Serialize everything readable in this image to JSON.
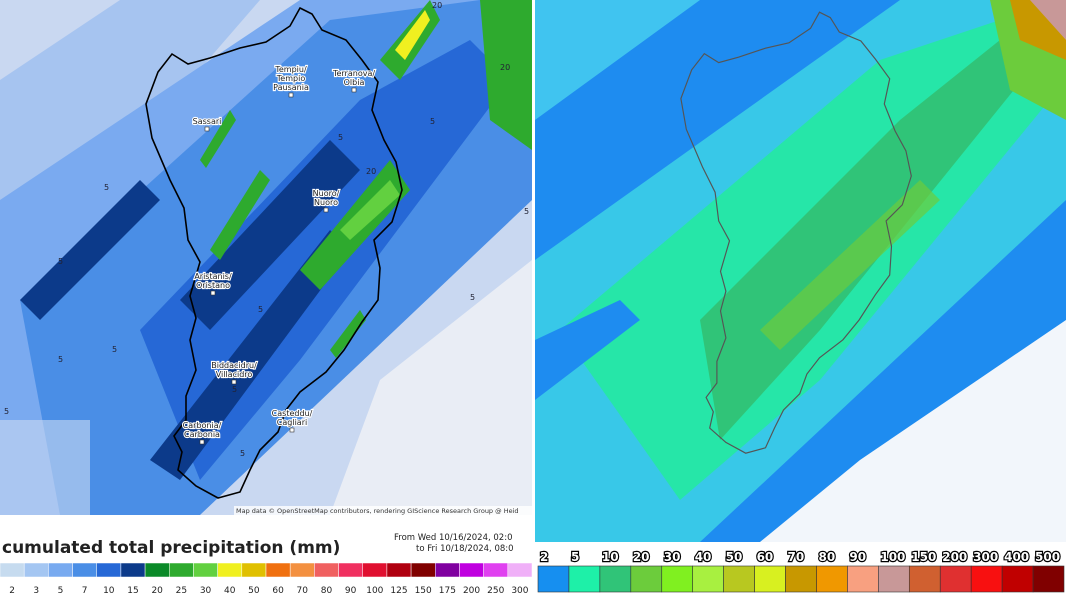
{
  "left_map": {
    "cities": [
      {
        "lines": [
          "Tempiu/",
          "Tempio",
          "Pausania"
        ]
      },
      {
        "lines": [
          "Terranova/",
          "Olbia"
        ]
      },
      {
        "lines": [
          "Sassari"
        ]
      },
      {
        "lines": [
          "Nuoro/",
          "Nuoro"
        ]
      },
      {
        "lines": [
          "Aristanis/",
          "Oristano"
        ]
      },
      {
        "lines": [
          "Biddacidru/",
          "Villacidro"
        ]
      },
      {
        "lines": [
          "Casteddu/",
          "Cagliari"
        ]
      },
      {
        "lines": [
          "Carbonia/",
          "Carbonia"
        ]
      }
    ],
    "contour_labels": [
      "5",
      "5",
      "5",
      "5",
      "5",
      "5",
      "5",
      "5",
      "5",
      "5",
      "20",
      "20",
      "20",
      "5",
      "5"
    ],
    "attribution": "Map data © OpenStreetMap contributors, rendering GIScience Research Group @ Heid",
    "title": "cumulated total precipitation (mm)",
    "period": [
      "From Wed 10/16/2024, 02:0",
      "to Fri 10/18/2024, 08:0"
    ],
    "legend": [
      {
        "label": 2,
        "color": "#c6dbef"
      },
      {
        "label": 3,
        "color": "#a4c6f2"
      },
      {
        "label": 5,
        "color": "#78aaf0"
      },
      {
        "label": 7,
        "color": "#4a8ee6"
      },
      {
        "label": 10,
        "color": "#2668d6"
      },
      {
        "label": 15,
        "color": "#0c3a8a"
      },
      {
        "label": 20,
        "color": "#0a8a28"
      },
      {
        "label": 25,
        "color": "#2eaa2e"
      },
      {
        "label": 30,
        "color": "#62d040"
      },
      {
        "label": 40,
        "color": "#f0f020"
      },
      {
        "label": 50,
        "color": "#e0c000"
      },
      {
        "label": 60,
        "color": "#f07010"
      },
      {
        "label": 70,
        "color": "#f39040"
      },
      {
        "label": 80,
        "color": "#f06060"
      },
      {
        "label": 90,
        "color": "#f03060"
      },
      {
        "label": 100,
        "color": "#e01030"
      },
      {
        "label": 125,
        "color": "#b00010"
      },
      {
        "label": 150,
        "color": "#800000"
      },
      {
        "label": 175,
        "color": "#8000a0"
      },
      {
        "label": 200,
        "color": "#c000e0"
      },
      {
        "label": 250,
        "color": "#e040f0"
      },
      {
        "label": 300,
        "color": "#f0b0f8"
      }
    ]
  },
  "right_map": {
    "legend": [
      {
        "label": 2,
        "color": "#168ff0"
      },
      {
        "label": 5,
        "color": "#1ef0a8"
      },
      {
        "label": 10,
        "color": "#30c478"
      },
      {
        "label": 20,
        "color": "#6ccc3c"
      },
      {
        "label": 30,
        "color": "#80f020"
      },
      {
        "label": 40,
        "color": "#a8f040"
      },
      {
        "label": 50,
        "color": "#b8c820"
      },
      {
        "label": 60,
        "color": "#d8f020"
      },
      {
        "label": 70,
        "color": "#c89800"
      },
      {
        "label": 80,
        "color": "#f09800"
      },
      {
        "label": 90,
        "color": "#f8a080"
      },
      {
        "label": 100,
        "color": "#c89898"
      },
      {
        "label": 150,
        "color": "#d06030"
      },
      {
        "label": 200,
        "color": "#e03030"
      },
      {
        "label": 300,
        "color": "#f81010"
      },
      {
        "label": 400,
        "color": "#c00000"
      },
      {
        "label": 500,
        "color": "#800000"
      }
    ]
  }
}
